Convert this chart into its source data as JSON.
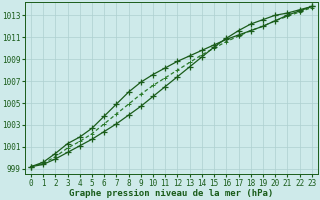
{
  "x": [
    0,
    1,
    2,
    3,
    4,
    5,
    6,
    7,
    8,
    9,
    10,
    11,
    12,
    13,
    14,
    15,
    16,
    17,
    18,
    19,
    20,
    21,
    22,
    23
  ],
  "line1": [
    999.2,
    999.4,
    999.9,
    1000.5,
    1001.1,
    1001.7,
    1002.4,
    1003.1,
    1003.9,
    1004.7,
    1005.6,
    1006.5,
    1007.4,
    1008.3,
    1009.2,
    1010.1,
    1010.9,
    1011.6,
    1012.2,
    1012.6,
    1013.0,
    1013.2,
    1013.5,
    1013.8
  ],
  "line2": [
    999.2,
    999.6,
    1000.4,
    1001.3,
    1001.9,
    1002.7,
    1003.8,
    1004.9,
    1006.0,
    1006.9,
    1007.6,
    1008.2,
    1008.8,
    1009.3,
    1009.8,
    1010.3,
    1010.8,
    1011.2,
    1011.6,
    1012.0,
    1012.5,
    1013.0,
    1013.4,
    1013.8
  ],
  "line3_dashed": [
    999.2,
    999.5,
    1000.1,
    1000.9,
    1001.5,
    1002.2,
    1003.1,
    1004.0,
    1004.9,
    1005.8,
    1006.6,
    1007.3,
    1008.0,
    1008.7,
    1009.4,
    1010.0,
    1010.6,
    1011.1,
    1011.6,
    1012.0,
    1012.5,
    1012.9,
    1013.3,
    1013.7
  ],
  "ylim": [
    998.5,
    1014.2
  ],
  "yticks": [
    999,
    1001,
    1003,
    1005,
    1007,
    1009,
    1011,
    1013
  ],
  "xticks": [
    0,
    1,
    2,
    3,
    4,
    5,
    6,
    7,
    8,
    9,
    10,
    11,
    12,
    13,
    14,
    15,
    16,
    17,
    18,
    19,
    20,
    21,
    22,
    23
  ],
  "xlabel": "Graphe pression niveau de la mer (hPa)",
  "bg_color": "#ceeaea",
  "grid_color": "#aed0d0",
  "line_color": "#1a5c1a",
  "dashed_color": "#2a7a2a",
  "marker": "+",
  "marker_size": 4,
  "linewidth": 0.9,
  "tick_fontsize": 5.5,
  "xlabel_fontsize": 6.5,
  "fig_width": 3.2,
  "fig_height": 2.0,
  "dpi": 100
}
